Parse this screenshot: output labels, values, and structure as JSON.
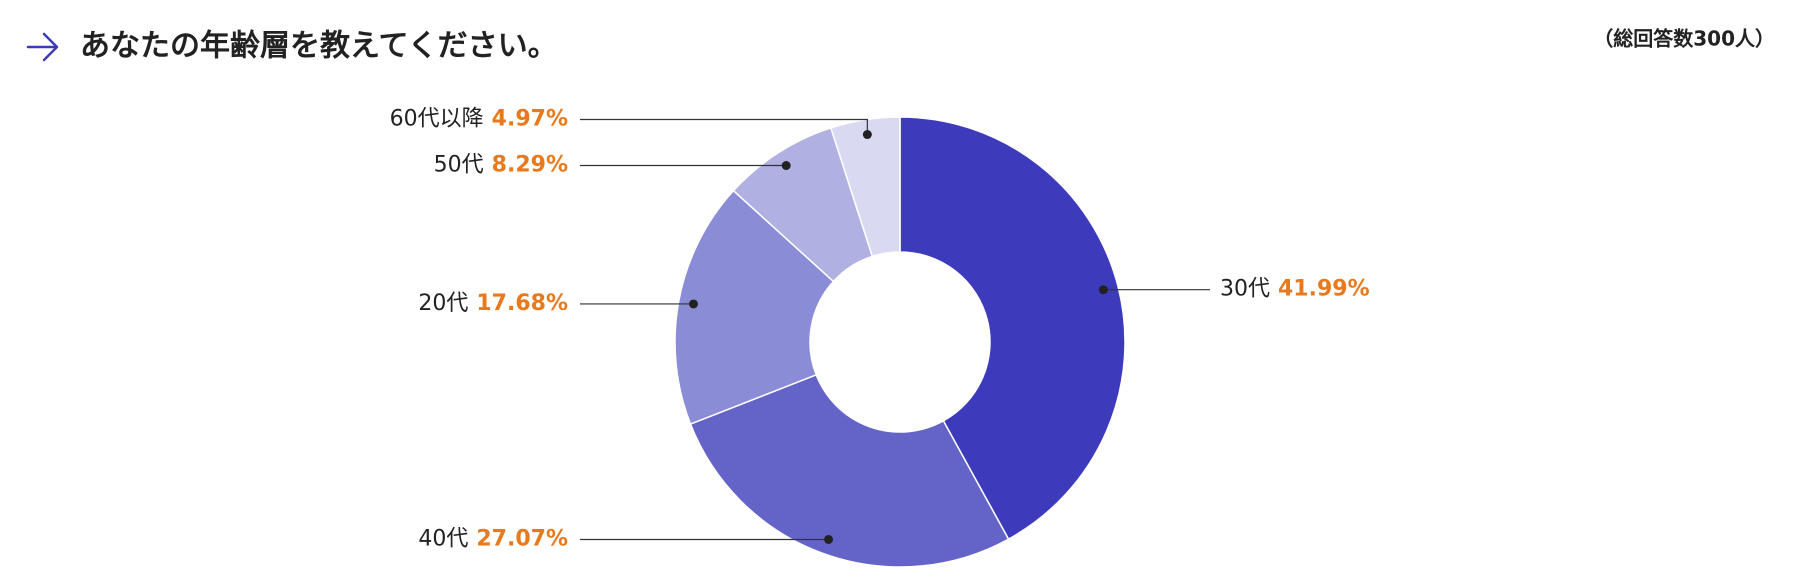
{
  "chart_data": {
    "type": "donut",
    "title": "あなたの年齢層を教えてください。",
    "note": "（総回答数300人）",
    "categories": [
      "30代",
      "40代",
      "20代",
      "50代",
      "60代以降"
    ],
    "values": [
      41.99,
      27.07,
      17.68,
      8.29,
      4.97
    ],
    "value_labels": [
      "41.99%",
      "27.07%",
      "17.68%",
      "8.29%",
      "4.97%"
    ],
    "colors": [
      "#3d3bbb",
      "#6464c8",
      "#8b8cd6",
      "#b0b0e3",
      "#d9d9f2"
    ],
    "value_label_color": "#e8791c"
  }
}
